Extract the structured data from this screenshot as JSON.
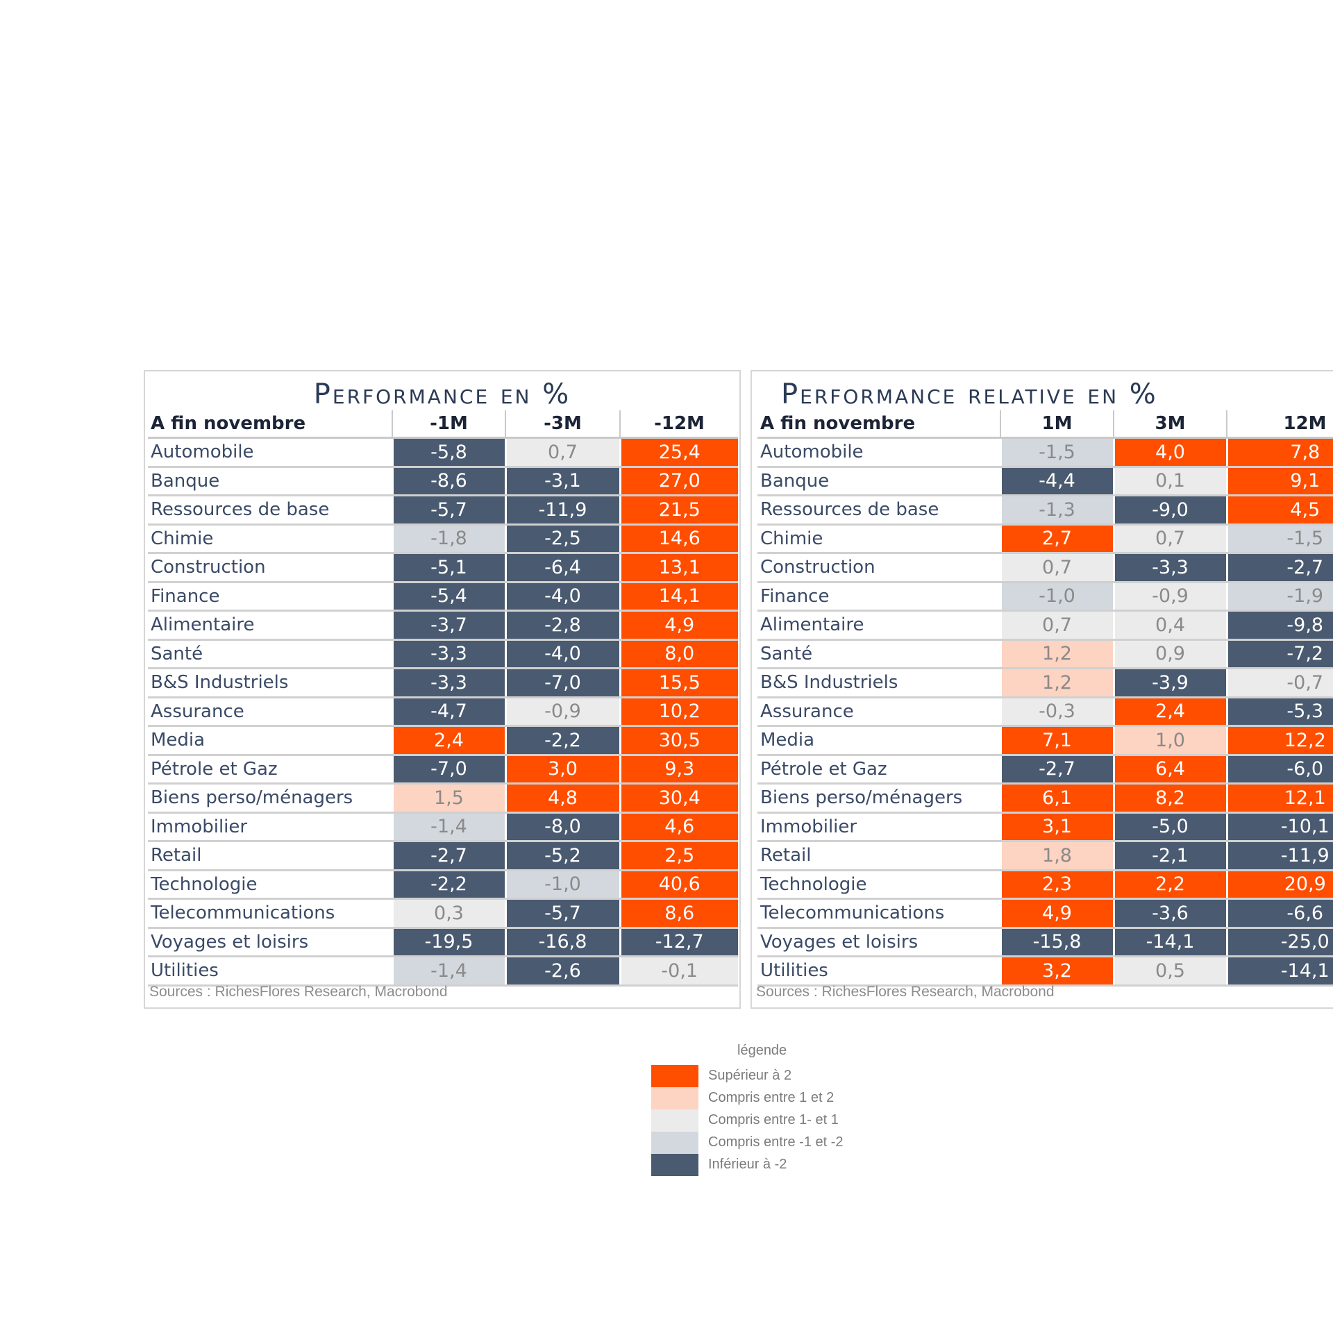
{
  "colors": {
    "superieur_2": "#ff4e00",
    "entre_1_2": "#fdd3c2",
    "entre_m1_1": "#ebebeb",
    "entre_m1_m2": "#d3d8de",
    "inferieur_m2": "#4a5a70"
  },
  "legend": {
    "title": "légende",
    "items": [
      {
        "label": "Supérieur à 2",
        "cls": "c-high"
      },
      {
        "label": "Compris entre 1 et 2",
        "cls": "c-mh"
      },
      {
        "label": "Compris entre 1- et 1",
        "cls": "c-mid"
      },
      {
        "label": "Compris entre -1 et -2",
        "cls": "c-ml"
      },
      {
        "label": "Inférieur à -2",
        "cls": "c-low"
      }
    ]
  },
  "chart_data": [
    {
      "type": "table",
      "title": "Performance en %",
      "row_header": "A fin novembre",
      "columns": [
        "-1M",
        "-3M",
        "-12M"
      ],
      "source": "Sources : RichesFlores Research, Macrobond",
      "rows": [
        {
          "label": "Automobile",
          "values": [
            "-5,8",
            "0,7",
            "25,4"
          ]
        },
        {
          "label": "Banque",
          "values": [
            "-8,6",
            "-3,1",
            "27,0"
          ]
        },
        {
          "label": "Ressources de base",
          "values": [
            "-5,7",
            "-11,9",
            "21,5"
          ]
        },
        {
          "label": "Chimie",
          "values": [
            "-1,8",
            "-2,5",
            "14,6"
          ]
        },
        {
          "label": "Construction",
          "values": [
            "-5,1",
            "-6,4",
            "13,1"
          ]
        },
        {
          "label": "Finance",
          "values": [
            "-5,4",
            "-4,0",
            "14,1"
          ]
        },
        {
          "label": "Alimentaire",
          "values": [
            "-3,7",
            "-2,8",
            "4,9"
          ]
        },
        {
          "label": "Santé",
          "values": [
            "-3,3",
            "-4,0",
            "8,0"
          ]
        },
        {
          "label": "B&S Industriels",
          "values": [
            "-3,3",
            "-7,0",
            "15,5"
          ]
        },
        {
          "label": "Assurance",
          "values": [
            "-4,7",
            "-0,9",
            "10,2"
          ]
        },
        {
          "label": "Media",
          "values": [
            "2,4",
            "-2,2",
            "30,5"
          ]
        },
        {
          "label": "Pétrole et Gaz",
          "values": [
            "-7,0",
            "3,0",
            "9,3"
          ]
        },
        {
          "label": "Biens perso/ménagers",
          "values": [
            "1,5",
            "4,8",
            "30,4"
          ]
        },
        {
          "label": "Immobilier",
          "values": [
            "-1,4",
            "-8,0",
            "4,6"
          ]
        },
        {
          "label": "Retail",
          "values": [
            "-2,7",
            "-5,2",
            "2,5"
          ]
        },
        {
          "label": "Technologie",
          "values": [
            "-2,2",
            "-1,0",
            "40,6"
          ]
        },
        {
          "label": "Telecommunications",
          "values": [
            "0,3",
            "-5,7",
            "8,6"
          ]
        },
        {
          "label": "Voyages et loisirs",
          "values": [
            "-19,5",
            "-16,8",
            "-12,7"
          ]
        },
        {
          "label": "Utilities",
          "values": [
            "-1,4",
            "-2,6",
            "-0,1"
          ]
        }
      ]
    },
    {
      "type": "table",
      "title": "Performance relative en %",
      "row_header": "A fin novembre",
      "columns": [
        "1M",
        "3M",
        "12M"
      ],
      "source": "Sources : RichesFlores Research, Macrobond",
      "rows": [
        {
          "label": "Automobile",
          "values": [
            "-1,5",
            "4,0",
            "7,8"
          ]
        },
        {
          "label": "Banque",
          "values": [
            "-4,4",
            "0,1",
            "9,1"
          ]
        },
        {
          "label": "Ressources de base",
          "values": [
            "-1,3",
            "-9,0",
            "4,5"
          ]
        },
        {
          "label": "Chimie",
          "values": [
            "2,7",
            "0,7",
            "-1,5"
          ]
        },
        {
          "label": "Construction",
          "values": [
            "0,7",
            "-3,3",
            "-2,7"
          ]
        },
        {
          "label": "Finance",
          "values": [
            "-1,0",
            "-0,9",
            "-1,9"
          ]
        },
        {
          "label": "Alimentaire",
          "values": [
            "0,7",
            "0,4",
            "-9,8"
          ]
        },
        {
          "label": "Santé",
          "values": [
            "1,2",
            "0,9",
            "-7,2"
          ]
        },
        {
          "label": "B&S Industriels",
          "values": [
            "1,2",
            "-3,9",
            "-0,7"
          ]
        },
        {
          "label": "Assurance",
          "values": [
            "-0,3",
            "2,4",
            "-5,3"
          ]
        },
        {
          "label": "Media",
          "values": [
            "7,1",
            "1,0",
            "12,2"
          ]
        },
        {
          "label": "Pétrole et Gaz",
          "values": [
            "-2,7",
            "6,4",
            "-6,0"
          ]
        },
        {
          "label": "Biens perso/ménagers",
          "values": [
            "6,1",
            "8,2",
            "12,1"
          ]
        },
        {
          "label": "Immobilier",
          "values": [
            "3,1",
            "-5,0",
            "-10,1"
          ]
        },
        {
          "label": "Retail",
          "values": [
            "1,8",
            "-2,1",
            "-11,9"
          ]
        },
        {
          "label": "Technologie",
          "values": [
            "2,3",
            "2,2",
            "20,9"
          ]
        },
        {
          "label": "Telecommunications",
          "values": [
            "4,9",
            "-3,6",
            "-6,6"
          ]
        },
        {
          "label": "Voyages et loisirs",
          "values": [
            "-15,8",
            "-14,1",
            "-25,0"
          ]
        },
        {
          "label": "Utilities",
          "values": [
            "3,2",
            "0,5",
            "-14,1"
          ]
        }
      ]
    }
  ]
}
